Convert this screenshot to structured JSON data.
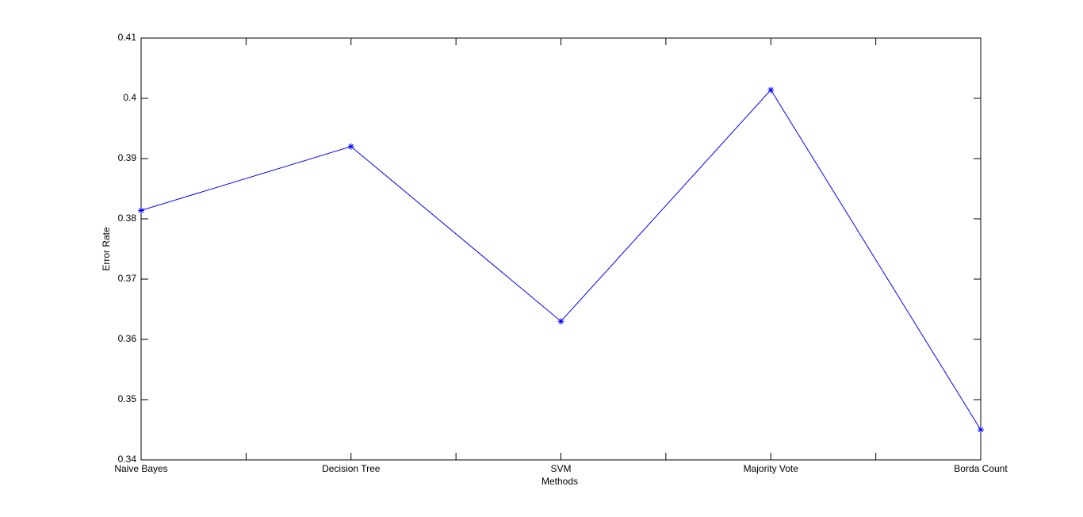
{
  "chart_data": {
    "type": "line",
    "x_label": "Methods",
    "y_label": "Error Rate",
    "categories": [
      "Naive Bayes",
      "Decision Tree",
      "SVM",
      "Majority Vote",
      "Borda Count"
    ],
    "series": [
      {
        "name": "Error Rate",
        "color": "#0000ff",
        "marker": "*",
        "values": [
          0.3814,
          0.392,
          0.363,
          0.4014,
          0.345
        ]
      }
    ],
    "ylim": [
      0.34,
      0.41
    ],
    "yticks": [
      0.34,
      0.35,
      0.36,
      0.37,
      0.38,
      0.39,
      0.4,
      0.41
    ],
    "grid": false
  }
}
